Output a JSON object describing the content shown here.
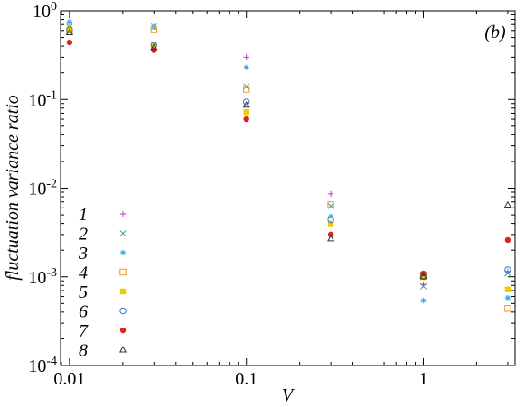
{
  "chart_data": {
    "type": "scatter",
    "annotation": "(b)",
    "x_label": "V",
    "y_label": "fluctuation variance ratio",
    "x": [
      0.01,
      0.03,
      0.1,
      0.3,
      1,
      3
    ],
    "series": [
      {
        "name": "1",
        "marker": "plus",
        "color": "#cc33cc",
        "values": [
          0.74,
          0.66,
          0.3,
          0.0086,
          0.00082,
          0.00115
        ]
      },
      {
        "name": "2",
        "marker": "x",
        "color": "#33aa88",
        "values": [
          0.66,
          0.66,
          0.14,
          0.0063,
          0.00078,
          0.0011
        ]
      },
      {
        "name": "3",
        "marker": "star",
        "color": "#33aaee",
        "values": [
          0.75,
          0.66,
          0.23,
          0.0048,
          0.00054,
          0.00058
        ]
      },
      {
        "name": "4",
        "marker": "square",
        "color": "#ee9922",
        "values": [
          0.58,
          0.61,
          0.13,
          0.0065,
          0.00104,
          0.00044
        ]
      },
      {
        "name": "5",
        "marker": "filled-square",
        "color": "#eecc00",
        "values": [
          0.63,
          0.41,
          0.072,
          0.004,
          0.00099,
          0.00072
        ]
      },
      {
        "name": "6",
        "marker": "circle",
        "color": "#3377cc",
        "values": [
          0.61,
          0.41,
          0.094,
          0.0044,
          0.00101,
          0.0012
        ]
      },
      {
        "name": "7",
        "marker": "filled-circle",
        "color": "#dd2222",
        "values": [
          0.44,
          0.36,
          0.06,
          0.003,
          0.00109,
          0.0026
        ]
      },
      {
        "name": "8",
        "marker": "triangle",
        "color": "#333333",
        "values": [
          0.57,
          0.39,
          0.087,
          0.0027,
          0.00101,
          0.0065
        ]
      }
    ],
    "x_scale": "log",
    "y_scale": "log",
    "xlim": [
      0.0089,
      3.3
    ],
    "ylim": [
      0.0001,
      1
    ],
    "xticks": [
      0.01,
      0.1,
      1
    ],
    "yticks": [
      {
        "value": 0.0001,
        "label": "10^-4"
      },
      {
        "value": 0.001,
        "label": "10^-3"
      },
      {
        "value": 0.01,
        "label": "10^-2"
      },
      {
        "value": 0.1,
        "label": "10^-1"
      },
      {
        "value": 1,
        "label": "10^0"
      }
    ],
    "legend": "left"
  }
}
